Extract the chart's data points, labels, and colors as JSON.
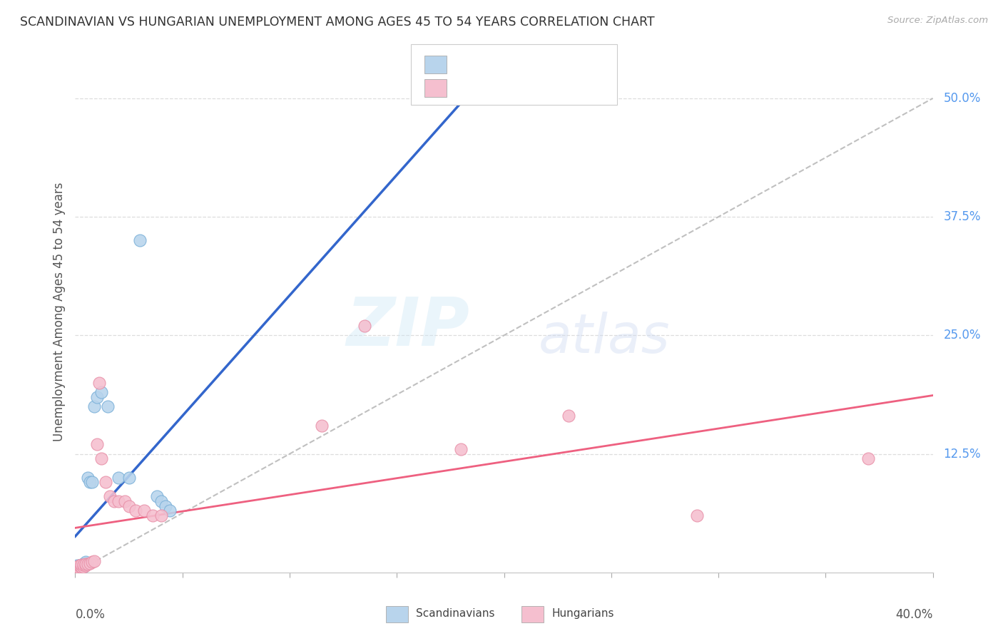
{
  "title": "SCANDINAVIAN VS HUNGARIAN UNEMPLOYMENT AMONG AGES 45 TO 54 YEARS CORRELATION CHART",
  "source": "Source: ZipAtlas.com",
  "ylabel": "Unemployment Among Ages 45 to 54 years",
  "xlim": [
    0.0,
    0.4
  ],
  "ylim": [
    0.0,
    0.55
  ],
  "scandinavian_face_color": "#b8d4ec",
  "scandinavian_edge_color": "#7ab0d8",
  "hungarian_face_color": "#f5bfcf",
  "hungarian_edge_color": "#e890a8",
  "scandinavian_line_color": "#3366cc",
  "hungarian_line_color": "#ee6080",
  "diag_color": "#c0c0c0",
  "grid_color": "#dddddd",
  "right_label_color": "#5599ee",
  "title_color": "#333333",
  "source_color": "#aaaaaa",
  "scand_x": [
    0.001,
    0.001,
    0.002,
    0.002,
    0.002,
    0.003,
    0.003,
    0.003,
    0.004,
    0.004,
    0.004,
    0.005,
    0.005,
    0.005,
    0.006,
    0.007,
    0.008,
    0.009,
    0.01,
    0.012,
    0.015,
    0.02,
    0.025,
    0.03,
    0.038,
    0.04,
    0.042,
    0.044
  ],
  "scand_y": [
    0.006,
    0.007,
    0.004,
    0.005,
    0.007,
    0.005,
    0.006,
    0.008,
    0.006,
    0.007,
    0.009,
    0.008,
    0.01,
    0.011,
    0.1,
    0.095,
    0.095,
    0.175,
    0.185,
    0.19,
    0.175,
    0.1,
    0.1,
    0.35,
    0.08,
    0.075,
    0.07,
    0.065
  ],
  "hung_x": [
    0.001,
    0.001,
    0.002,
    0.002,
    0.003,
    0.003,
    0.003,
    0.004,
    0.004,
    0.005,
    0.005,
    0.006,
    0.007,
    0.008,
    0.009,
    0.01,
    0.011,
    0.012,
    0.014,
    0.016,
    0.018,
    0.02,
    0.023,
    0.025,
    0.028,
    0.032,
    0.036,
    0.04,
    0.115,
    0.135,
    0.18,
    0.23,
    0.29,
    0.37
  ],
  "hung_y": [
    0.005,
    0.006,
    0.005,
    0.007,
    0.005,
    0.006,
    0.008,
    0.006,
    0.008,
    0.007,
    0.009,
    0.009,
    0.01,
    0.011,
    0.012,
    0.135,
    0.2,
    0.12,
    0.095,
    0.08,
    0.075,
    0.075,
    0.075,
    0.07,
    0.065,
    0.065,
    0.06,
    0.06,
    0.155,
    0.26,
    0.13,
    0.165,
    0.06,
    0.12
  ]
}
